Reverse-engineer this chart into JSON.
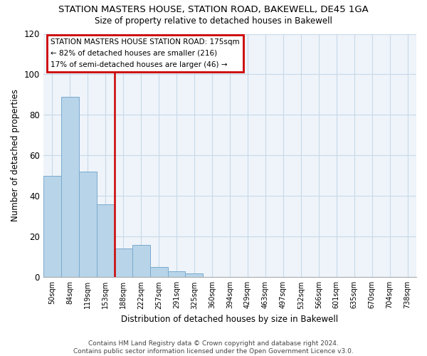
{
  "title": "STATION MASTERS HOUSE, STATION ROAD, BAKEWELL, DE45 1GA",
  "subtitle": "Size of property relative to detached houses in Bakewell",
  "xlabel": "Distribution of detached houses by size in Bakewell",
  "ylabel": "Number of detached properties",
  "bar_labels": [
    "50sqm",
    "84sqm",
    "119sqm",
    "153sqm",
    "188sqm",
    "222sqm",
    "257sqm",
    "291sqm",
    "325sqm",
    "360sqm",
    "394sqm",
    "429sqm",
    "463sqm",
    "497sqm",
    "532sqm",
    "566sqm",
    "601sqm",
    "635sqm",
    "670sqm",
    "704sqm",
    "738sqm"
  ],
  "bar_values": [
    50,
    89,
    52,
    36,
    14,
    16,
    5,
    3,
    2,
    0,
    0,
    0,
    0,
    0,
    0,
    0,
    0,
    0,
    0,
    0,
    0
  ],
  "bar_color": "#b8d4e8",
  "bar_edge_color": "#7aaacf",
  "ylim": [
    0,
    120
  ],
  "yticks": [
    0,
    20,
    40,
    60,
    80,
    100,
    120
  ],
  "property_line_label": "STATION MASTERS HOUSE STATION ROAD: 175sqm",
  "annotation_line1": "← 82% of detached houses are smaller (216)",
  "annotation_line2": "17% of semi-detached houses are larger (46) →",
  "annotation_box_color": "#cc0000",
  "vline_color": "#cc0000",
  "grid_color": "#c8d8e8",
  "footer1": "Contains HM Land Registry data © Crown copyright and database right 2024.",
  "footer2": "Contains public sector information licensed under the Open Government Licence v3.0."
}
